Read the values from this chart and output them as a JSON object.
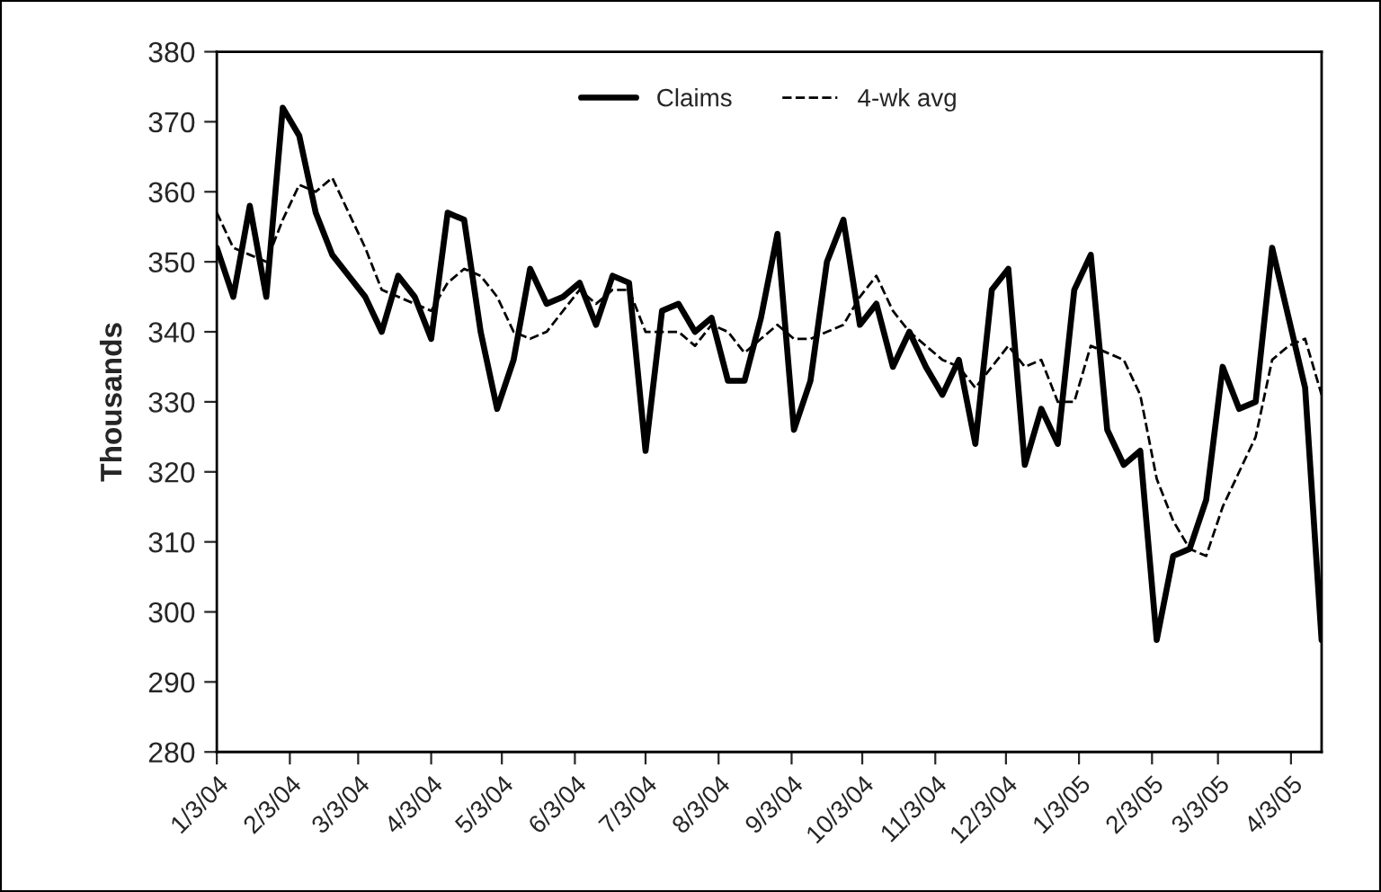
{
  "chart_data": {
    "type": "line",
    "ylabel": "Thousands",
    "x": [
      "2004-01-03",
      "2004-01-10",
      "2004-01-17",
      "2004-01-24",
      "2004-01-31",
      "2004-02-07",
      "2004-02-14",
      "2004-02-21",
      "2004-02-28",
      "2004-03-06",
      "2004-03-13",
      "2004-03-20",
      "2004-03-27",
      "2004-04-03",
      "2004-04-10",
      "2004-04-17",
      "2004-04-24",
      "2004-05-01",
      "2004-05-08",
      "2004-05-15",
      "2004-05-22",
      "2004-05-29",
      "2004-06-05",
      "2004-06-12",
      "2004-06-19",
      "2004-06-26",
      "2004-07-03",
      "2004-07-10",
      "2004-07-17",
      "2004-07-24",
      "2004-07-31",
      "2004-08-07",
      "2004-08-14",
      "2004-08-21",
      "2004-08-28",
      "2004-09-04",
      "2004-09-11",
      "2004-09-18",
      "2004-09-25",
      "2004-10-02",
      "2004-10-09",
      "2004-10-16",
      "2004-10-23",
      "2004-10-30",
      "2004-11-06",
      "2004-11-13",
      "2004-11-20",
      "2004-11-27",
      "2004-12-04",
      "2004-12-11",
      "2004-12-18",
      "2004-12-25",
      "2005-01-01",
      "2005-01-08",
      "2005-01-15",
      "2005-01-22",
      "2005-01-29",
      "2005-02-05",
      "2005-02-12",
      "2005-02-19",
      "2005-02-26",
      "2005-03-05",
      "2005-03-12",
      "2005-03-19",
      "2005-03-26",
      "2005-04-02",
      "2005-04-09",
      "2005-04-16"
    ],
    "series": [
      {
        "name": "Claims",
        "color": "#000000",
        "line_style": "solid",
        "values": [
          352,
          345,
          358,
          345,
          372,
          368,
          357,
          351,
          348,
          345,
          340,
          348,
          345,
          339,
          357,
          356,
          340,
          329,
          336,
          349,
          344,
          345,
          347,
          341,
          348,
          347,
          323,
          343,
          344,
          340,
          342,
          333,
          333,
          342,
          354,
          326,
          333,
          350,
          356,
          341,
          344,
          335,
          340,
          335,
          331,
          336,
          324,
          346,
          349,
          321,
          329,
          324,
          346,
          351,
          326,
          321,
          323,
          296,
          308,
          309,
          316,
          335,
          329,
          330,
          352,
          342,
          332,
          296
        ]
      },
      {
        "name": "4-wk avg",
        "color": "#000000",
        "line_style": "dashed",
        "values": [
          357,
          352,
          351,
          350,
          356,
          361,
          360,
          362,
          357,
          352,
          346,
          345,
          344,
          343,
          347,
          349,
          348,
          345,
          340,
          339,
          340,
          343,
          346,
          344,
          346,
          346,
          340,
          340,
          340,
          338,
          341,
          340,
          337,
          339,
          341,
          339,
          339,
          340,
          341,
          345,
          348,
          343,
          340,
          338,
          336,
          335,
          332,
          335,
          338,
          335,
          336,
          330,
          330,
          338,
          337,
          336,
          331,
          319,
          313,
          309,
          308,
          315,
          320,
          325,
          336,
          338,
          339,
          331
        ]
      }
    ],
    "xlim": [
      "2004-01-03",
      "2005-04-16"
    ],
    "xticks": [
      {
        "value": "2004-01-03",
        "label": "1/3/04"
      },
      {
        "value": "2004-02-03",
        "label": "2/3/04"
      },
      {
        "value": "2004-03-03",
        "label": "3/3/04"
      },
      {
        "value": "2004-04-03",
        "label": "4/3/04"
      },
      {
        "value": "2004-05-03",
        "label": "5/3/04"
      },
      {
        "value": "2004-06-03",
        "label": "6/3/04"
      },
      {
        "value": "2004-07-03",
        "label": "7/3/04"
      },
      {
        "value": "2004-08-03",
        "label": "8/3/04"
      },
      {
        "value": "2004-09-03",
        "label": "9/3/04"
      },
      {
        "value": "2004-10-03",
        "label": "10/3/04"
      },
      {
        "value": "2004-11-03",
        "label": "11/3/04"
      },
      {
        "value": "2004-12-03",
        "label": "12/3/04"
      },
      {
        "value": "2005-01-03",
        "label": "1/3/05"
      },
      {
        "value": "2005-02-03",
        "label": "2/3/05"
      },
      {
        "value": "2005-03-03",
        "label": "3/3/05"
      },
      {
        "value": "2005-04-03",
        "label": "4/3/05"
      }
    ],
    "ylim": [
      280,
      380
    ],
    "yticks": [
      280,
      290,
      300,
      310,
      320,
      330,
      340,
      350,
      360,
      370,
      380
    ],
    "grid": false,
    "legend": "top",
    "marker": "none"
  }
}
